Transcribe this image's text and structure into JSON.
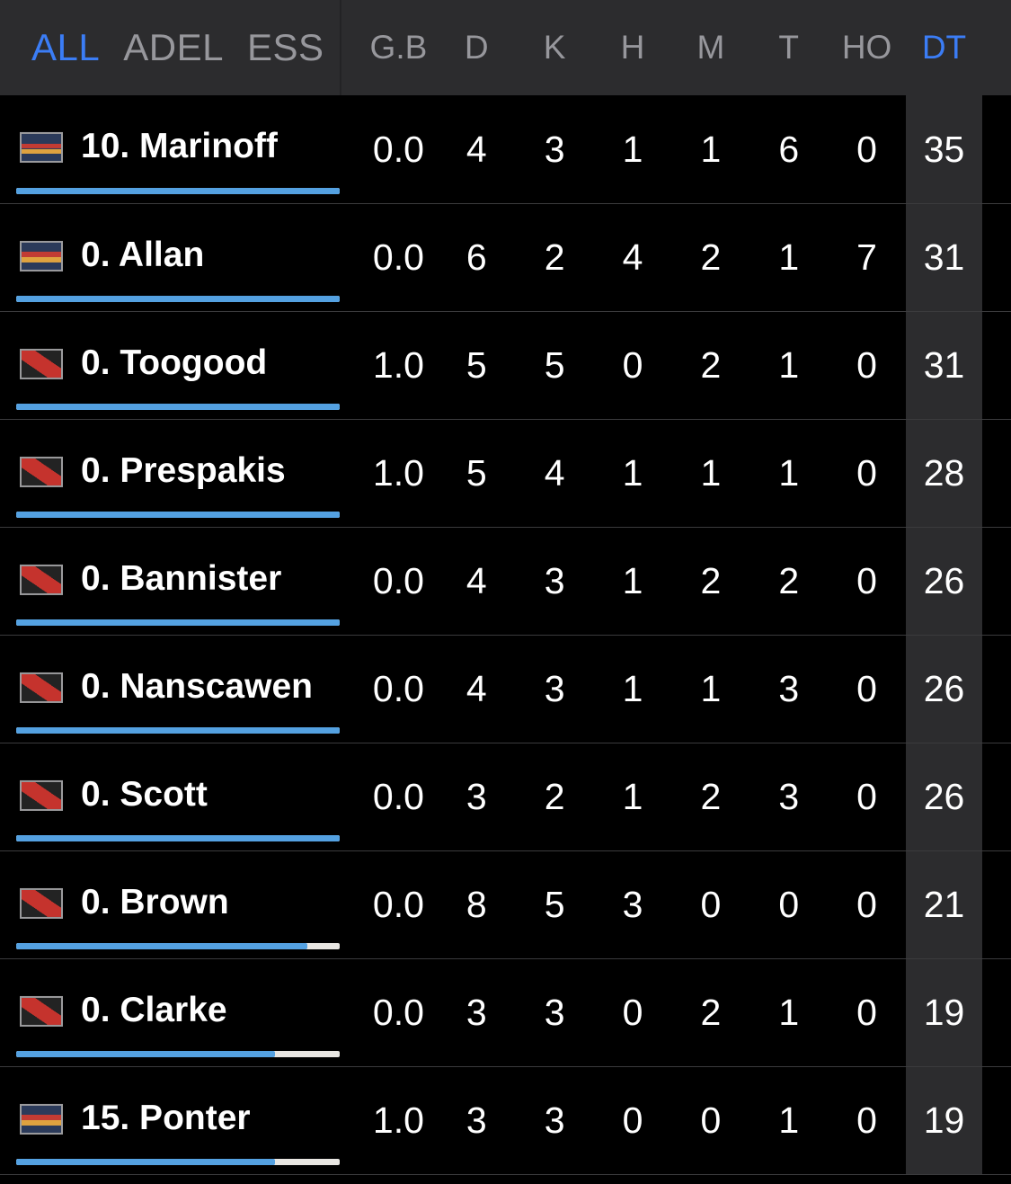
{
  "header": {
    "tabs": [
      {
        "label": "ALL",
        "active": true
      },
      {
        "label": "ADEL",
        "active": false
      },
      {
        "label": "ESS",
        "active": false
      }
    ],
    "stat_columns": [
      "G.B",
      "D",
      "K",
      "H",
      "M",
      "T",
      "HO"
    ],
    "dt_column": "DT"
  },
  "colors": {
    "accent_blue": "#3b7df6",
    "bar_blue": "#54a1e1",
    "bar_track": "#e8e6e2",
    "header_bg": "#2c2c2e",
    "dt_column_bg": "#2c2c2e",
    "muted_text": "#97979c",
    "adelaide_navy": "#2b3a5a",
    "adelaide_red": "#c23b33",
    "adelaide_gold": "#dfa23f",
    "essendon_black": "#232323",
    "essendon_red": "#c5332d"
  },
  "players": [
    {
      "team": "adelaide",
      "name": "10. Marinoff",
      "bar_pct": 100,
      "stats": [
        "0.0",
        "4",
        "3",
        "1",
        "1",
        "6",
        "0"
      ],
      "dt": "35"
    },
    {
      "team": "adelaide",
      "name": "0. Allan",
      "bar_pct": 100,
      "stats": [
        "0.0",
        "6",
        "2",
        "4",
        "2",
        "1",
        "7"
      ],
      "dt": "31"
    },
    {
      "team": "essendon",
      "name": "0. Toogood",
      "bar_pct": 100,
      "stats": [
        "1.0",
        "5",
        "5",
        "0",
        "2",
        "1",
        "0"
      ],
      "dt": "31"
    },
    {
      "team": "essendon",
      "name": "0. Prespakis",
      "bar_pct": 100,
      "stats": [
        "1.0",
        "5",
        "4",
        "1",
        "1",
        "1",
        "0"
      ],
      "dt": "28"
    },
    {
      "team": "essendon",
      "name": "0. Bannister",
      "bar_pct": 100,
      "stats": [
        "0.0",
        "4",
        "3",
        "1",
        "2",
        "2",
        "0"
      ],
      "dt": "26"
    },
    {
      "team": "essendon",
      "name": "0. Nanscawen",
      "bar_pct": 100,
      "stats": [
        "0.0",
        "4",
        "3",
        "1",
        "1",
        "3",
        "0"
      ],
      "dt": "26"
    },
    {
      "team": "essendon",
      "name": "0. Scott",
      "bar_pct": 100,
      "stats": [
        "0.0",
        "3",
        "2",
        "1",
        "2",
        "3",
        "0"
      ],
      "dt": "26"
    },
    {
      "team": "essendon",
      "name": "0. Brown",
      "bar_pct": 90,
      "stats": [
        "0.0",
        "8",
        "5",
        "3",
        "0",
        "0",
        "0"
      ],
      "dt": "21"
    },
    {
      "team": "essendon",
      "name": "0. Clarke",
      "bar_pct": 80,
      "stats": [
        "0.0",
        "3",
        "3",
        "0",
        "2",
        "1",
        "0"
      ],
      "dt": "19"
    },
    {
      "team": "adelaide",
      "name": "15. Ponter",
      "bar_pct": 80,
      "stats": [
        "1.0",
        "3",
        "3",
        "0",
        "0",
        "1",
        "0"
      ],
      "dt": "19"
    }
  ]
}
